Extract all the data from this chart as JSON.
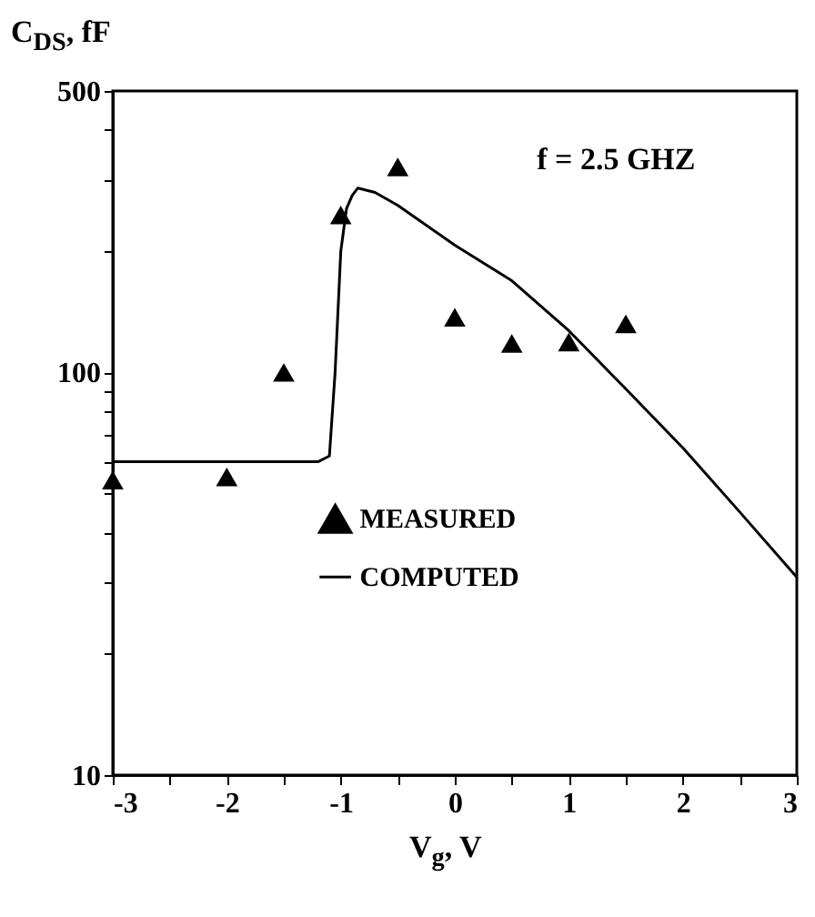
{
  "chart_data": {
    "type": "line",
    "xlabel": "V$_{g}$, V",
    "ylabel": "C$_{DS}$, fF",
    "annotations": [
      "f = 2.5 GHZ"
    ],
    "log": "y",
    "grid": false,
    "legend": "bottom",
    "xlim": [
      -3,
      3
    ],
    "ylim": [
      10,
      500
    ],
    "xticks": [
      -3,
      {
        "value": -2.5,
        "label": null
      },
      -2,
      {
        "value": -1.5,
        "label": null
      },
      -1,
      {
        "value": -0.5,
        "label": null
      },
      0,
      {
        "value": 0.5,
        "label": null
      },
      1,
      {
        "value": 1.5,
        "label": null
      },
      2,
      {
        "value": 2.5,
        "label": null
      },
      3
    ],
    "yticks": [
      10,
      {
        "value": 20,
        "label": null
      },
      {
        "value": 30,
        "label": null
      },
      {
        "value": 40,
        "label": null
      },
      {
        "value": 50,
        "label": null
      },
      {
        "value": 60,
        "label": null
      },
      {
        "value": 70,
        "label": null
      },
      {
        "value": 80,
        "label": null
      },
      {
        "value": 90,
        "label": null
      },
      100,
      {
        "value": 200,
        "label": null
      },
      {
        "value": 300,
        "label": null
      },
      {
        "value": 400,
        "label": null
      },
      500
    ],
    "series": [
      {
        "name": "MEASURED",
        "type": "scatter",
        "marker": "triangle",
        "color": "#000000",
        "x": [
          -3,
          -2,
          -1.5,
          -1,
          -0.5,
          0,
          0.5,
          1,
          1.5
        ],
        "values": [
          54,
          55,
          100,
          246,
          324,
          137,
          118,
          119,
          132
        ]
      },
      {
        "name": "COMPUTED",
        "marker": "none",
        "color": "#000000",
        "x": [
          -3,
          -1.2,
          -1.1,
          -1.05,
          -1.0,
          -0.95,
          -0.9,
          -0.85,
          -0.7,
          -0.5,
          0,
          0.5,
          1,
          1.5,
          2,
          2.5,
          3
        ],
        "values": [
          60,
          60,
          62,
          100,
          200,
          255,
          275,
          287,
          280,
          260,
          207,
          169,
          127,
          91,
          65,
          45,
          31
        ]
      }
    ]
  }
}
